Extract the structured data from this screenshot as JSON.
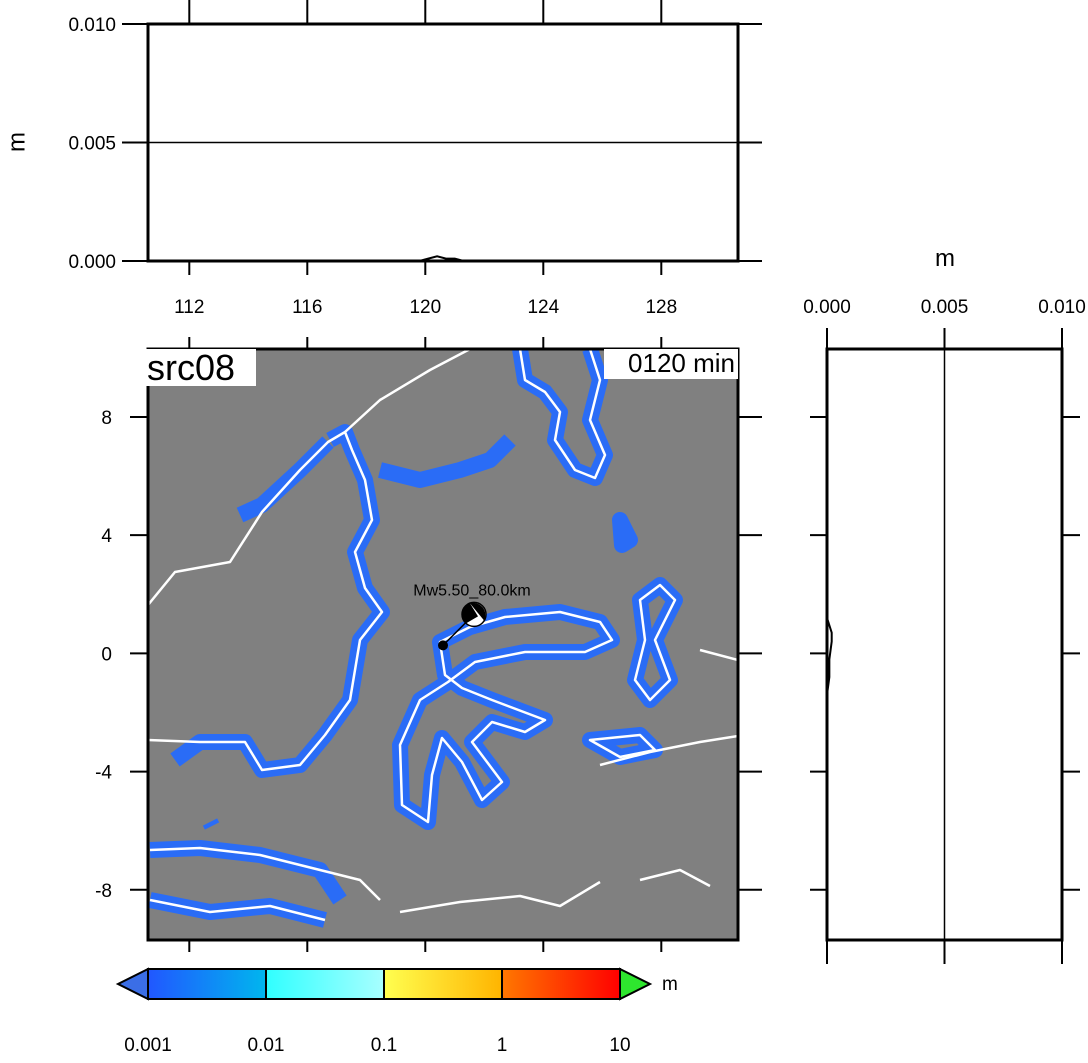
{
  "chart_data": [
    {
      "type": "line",
      "ylabel": "m",
      "xlim": [
        110.6,
        130.6
      ],
      "xticks": [
        112,
        116,
        120,
        124,
        128
      ],
      "ylim": [
        0,
        0.01
      ],
      "yticks": [
        {
          "value": 0,
          "label": "0.000"
        },
        {
          "value": 0.005,
          "label": "0.005"
        },
        {
          "value": 0.01,
          "label": "0.010"
        }
      ],
      "hline": 0.005,
      "series": [
        {
          "color": "#000000",
          "x": [
            110.6,
            119.8,
            120.1,
            120.4,
            120.7,
            121.0,
            121.3,
            130.6
          ],
          "values": [
            0,
            0,
            0.0001,
            0.0002,
            0.0001,
            0.0001,
            0,
            0
          ]
        }
      ]
    },
    {
      "type": "map",
      "title": "src08",
      "time_label": "0120 min",
      "xlim": [
        110.6,
        130.6
      ],
      "xticks": [
        112,
        116,
        120,
        124,
        128
      ],
      "ylim": [
        -9.7,
        10.3
      ],
      "yticks": [
        -8,
        -4,
        0,
        4,
        8
      ],
      "event_label": "Mw5.50_80.0km",
      "epicenter_lon": 120.6,
      "epicenter_lat": 0.27,
      "sea_color": "#808080"
    },
    {
      "type": "profile",
      "xlabel": "m",
      "xlim": [
        0,
        0.01
      ],
      "xticks": [
        {
          "value": 0,
          "label": "0.000"
        },
        {
          "value": 0.005,
          "label": "0.005"
        },
        {
          "value": 0.01,
          "label": "0.010"
        }
      ],
      "ylim": [
        -9.7,
        10.3
      ],
      "vline": 0.005,
      "series": [
        {
          "color": "#000000",
          "lat": [
            -9.7,
            -1.4,
            -0.8,
            -0.2,
            0.4,
            0.7,
            1.2,
            10.3
          ],
          "values": [
            0,
            0,
            0.0001,
            0.0001,
            0.0002,
            0.0002,
            0,
            0
          ]
        }
      ]
    },
    {
      "type": "colorbar",
      "label": "m",
      "log": true,
      "ticks": [
        0.001,
        0.01,
        0.1,
        1,
        10
      ],
      "segments": [
        [
          "#2157ff",
          "#00b6ee"
        ],
        [
          "#30ffff",
          "#a8ffff"
        ],
        [
          "#ffff50",
          "#ffb400"
        ],
        [
          "#ff7800",
          "#ff0000"
        ]
      ],
      "extend_colors": [
        "#3b6ee6",
        "#2ee62e"
      ]
    }
  ]
}
